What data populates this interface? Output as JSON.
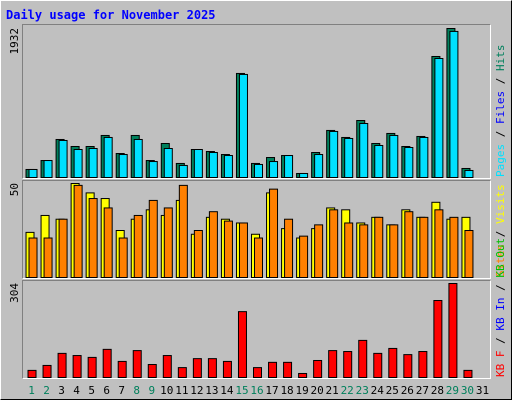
{
  "title": "Daily usage for November 2025",
  "legend_separator": " / ",
  "chart_data": [
    {
      "type": "bar",
      "ylim": [
        0,
        1932
      ],
      "yticks": [
        1932
      ],
      "legend": [
        {
          "text": "Pages",
          "color": "#00e0ff"
        },
        {
          "text": "Files",
          "color": "#0000ff"
        },
        {
          "text": "Hits",
          "color": "#00805c"
        }
      ],
      "series": [
        {
          "name": "Hits",
          "color": "#00805c",
          "values": [
            104,
            220,
            493,
            402,
            402,
            545,
            311,
            545,
            220,
            441,
            182,
            363,
            337,
            298,
            1349,
            182,
            259,
            285,
            52,
            324,
            610,
            519,
            739,
            441,
            571,
            402,
            532,
            1569,
            1932,
            117,
            0
          ]
        },
        {
          "name": "Pages",
          "color": "#00e0ff",
          "values": [
            104,
            220,
            480,
            363,
            376,
            519,
            298,
            493,
            207,
            376,
            156,
            363,
            324,
            285,
            1336,
            169,
            207,
            285,
            52,
            298,
            597,
            506,
            700,
            415,
            545,
            389,
            519,
            1543,
            1894,
            91,
            0
          ]
        }
      ]
    },
    {
      "type": "bar",
      "ylim": [
        0,
        50
      ],
      "yticks": [
        50
      ],
      "legend": [
        {
          "text": "Sites",
          "color": "#ff8000"
        },
        {
          "text": "Visits",
          "color": "#ffff00"
        }
      ],
      "series": [
        {
          "name": "Visits",
          "color": "#ffff00",
          "values": [
            24,
            33,
            31,
            50,
            45,
            42,
            25,
            31,
            36,
            33,
            41,
            23,
            32,
            31,
            29,
            23,
            45,
            26,
            21,
            26,
            37,
            36,
            29,
            32,
            28,
            36,
            32,
            40,
            31,
            32,
            0
          ]
        },
        {
          "name": "Sites",
          "color": "#ff8000",
          "values": [
            21,
            21,
            31,
            49,
            42,
            37,
            21,
            33,
            41,
            37,
            49,
            25,
            35,
            30,
            29,
            21,
            47,
            31,
            22,
            28,
            36,
            29,
            28,
            32,
            28,
            35,
            32,
            36,
            32,
            25,
            0
          ]
        }
      ]
    },
    {
      "type": "bar",
      "ylim": [
        0,
        304
      ],
      "yticks": [
        304
      ],
      "legend": [
        {
          "text": "KB F",
          "color": "#ff0000"
        },
        {
          "text": "KB In",
          "color": "#0000ff"
        },
        {
          "text": "KB Out",
          "color": "#00c000"
        }
      ],
      "series": [
        {
          "name": "KB F",
          "color": "#ff0000",
          "values": [
            23,
            39,
            78,
            71,
            65,
            91,
            52,
            87,
            42,
            71,
            32,
            61,
            61,
            52,
            213,
            32,
            49,
            49,
            13,
            55,
            87,
            84,
            120,
            78,
            94,
            74,
            84,
            249,
            304,
            23,
            0
          ]
        }
      ],
      "categories": [
        "1",
        "2",
        "3",
        "4",
        "5",
        "6",
        "7",
        "8",
        "9",
        "10",
        "11",
        "12",
        "13",
        "14",
        "15",
        "16",
        "17",
        "18",
        "19",
        "20",
        "21",
        "22",
        "23",
        "24",
        "25",
        "26",
        "27",
        "28",
        "29",
        "30",
        "31"
      ],
      "category_colors": [
        "#00805c",
        "#00805c",
        "#000000",
        "#000000",
        "#000000",
        "#000000",
        "#000000",
        "#00805c",
        "#00805c",
        "#000000",
        "#000000",
        "#000000",
        "#000000",
        "#000000",
        "#00805c",
        "#00805c",
        "#000000",
        "#000000",
        "#000000",
        "#000000",
        "#000000",
        "#00805c",
        "#00805c",
        "#000000",
        "#000000",
        "#000000",
        "#000000",
        "#000000",
        "#00805c",
        "#00805c",
        "#000000"
      ]
    }
  ]
}
